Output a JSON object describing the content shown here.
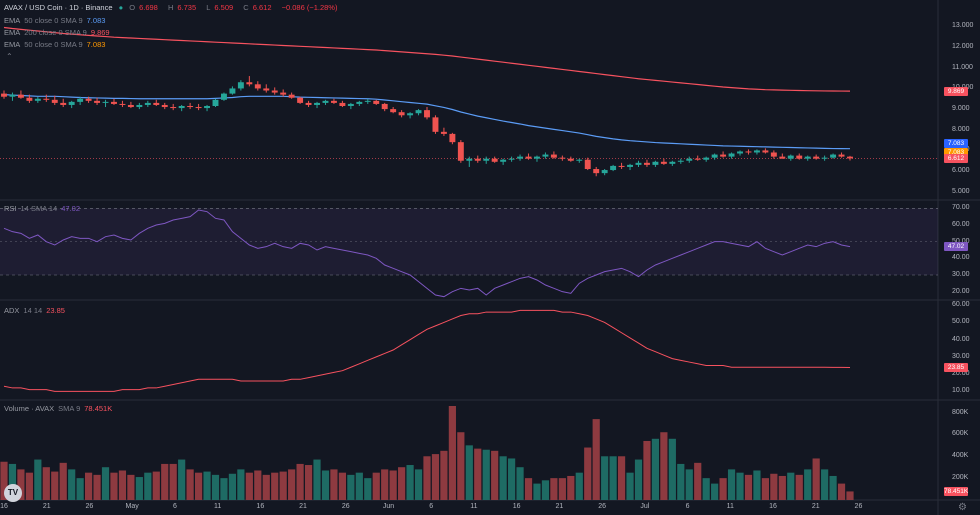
{
  "header": {
    "symbol": "AVAX / USD Coin · 1D · Binance",
    "status_dot_color": "#26a69a",
    "ohlc": [
      {
        "key": "O",
        "value": "6.698"
      },
      {
        "key": "H",
        "value": "6.735"
      },
      {
        "key": "L",
        "value": "6.509"
      },
      {
        "key": "C",
        "value": "6.612"
      }
    ],
    "change": "−0.086 (−1.28%)",
    "change_color": "#f23645"
  },
  "indicators": [
    {
      "name": "EMA",
      "params": "50 close 0 SMA 9",
      "value": "7.083",
      "color": "#5b9cf6"
    },
    {
      "name": "EMA",
      "params": "200 close 0 SMA 9",
      "value": "9.869",
      "color": "#f7525f"
    },
    {
      "name": "EMA",
      "params": "50 close 0 SMA 9",
      "value": "7.083",
      "color": "#ff9800"
    }
  ],
  "rsi": {
    "name": "RSI",
    "params": "14 SMA 14",
    "value": "47.02",
    "color": "#7e57c2"
  },
  "adx": {
    "name": "ADX",
    "params": "14 14",
    "value": "23.85",
    "color": "#f7525f"
  },
  "volume": {
    "name": "Volume · AVAX",
    "params": "SMA 9",
    "value": "78.451K",
    "color": "#f7525f"
  },
  "price_axis": [
    "13.000",
    "12.000",
    "11.000",
    "10.000",
    "9.000",
    "8.000",
    "7.000",
    "6.000",
    "5.000"
  ],
  "price_badges": [
    {
      "value": "9.869",
      "color": "#f7525f"
    },
    {
      "value": "7.083",
      "color": "#2962ff"
    },
    {
      "value": "7.083",
      "color": "#ff9800"
    },
    {
      "value": "6.612",
      "color": "#f7525f"
    }
  ],
  "rsi_axis": [
    "70.00",
    "60.00",
    "50.00",
    "40.00",
    "30.00",
    "20.00"
  ],
  "rsi_badge": {
    "value": "47.02",
    "color": "#7e57c2"
  },
  "adx_axis": [
    "60.00",
    "50.00",
    "40.00",
    "30.00",
    "20.00",
    "10.00"
  ],
  "adx_badge": {
    "value": "23.85",
    "color": "#f7525f"
  },
  "volume_axis": [
    "800K",
    "600K",
    "400K",
    "200K"
  ],
  "volume_badge": {
    "value": "78.451K",
    "color": "#f7525f"
  },
  "time_axis": [
    "16",
    "21",
    "26",
    "May",
    "6",
    "11",
    "16",
    "21",
    "26",
    "Jun",
    "6",
    "11",
    "16",
    "21",
    "26",
    "Jul",
    "6",
    "11",
    "16",
    "21",
    "26"
  ],
  "logo_text": "TV",
  "chart_data": {
    "type": "candlestick",
    "title": "AVAX / USD Coin · 1D · Binance",
    "colors": {
      "up": "#26a69a",
      "down": "#ef5350",
      "vol_up": "#1e6b64",
      "vol_down": "#8e3a40"
    },
    "price_range": [
      4.6,
      13.7
    ],
    "rsi_range": [
      15,
      75
    ],
    "adx_range": [
      5,
      63
    ],
    "volume_range": [
      0,
      860000
    ],
    "candles": [
      [
        9.75,
        9.9,
        9.5,
        9.6
      ],
      [
        9.6,
        9.8,
        9.4,
        9.7
      ],
      [
        9.7,
        9.9,
        9.5,
        9.55
      ],
      [
        9.55,
        9.7,
        9.3,
        9.4
      ],
      [
        9.4,
        9.6,
        9.3,
        9.5
      ],
      [
        9.5,
        9.7,
        9.35,
        9.45
      ],
      [
        9.45,
        9.65,
        9.2,
        9.3
      ],
      [
        9.3,
        9.5,
        9.1,
        9.2
      ],
      [
        9.2,
        9.4,
        9.05,
        9.35
      ],
      [
        9.35,
        9.6,
        9.2,
        9.5
      ],
      [
        9.5,
        9.6,
        9.3,
        9.4
      ],
      [
        9.4,
        9.55,
        9.2,
        9.3
      ],
      [
        9.3,
        9.45,
        9.1,
        9.35
      ],
      [
        9.35,
        9.5,
        9.2,
        9.25
      ],
      [
        9.25,
        9.4,
        9.1,
        9.2
      ],
      [
        9.2,
        9.35,
        9.05,
        9.1
      ],
      [
        9.1,
        9.3,
        9.0,
        9.2
      ],
      [
        9.2,
        9.4,
        9.1,
        9.3
      ],
      [
        9.3,
        9.45,
        9.15,
        9.2
      ],
      [
        9.2,
        9.3,
        9.0,
        9.1
      ],
      [
        9.1,
        9.25,
        8.95,
        9.05
      ],
      [
        9.05,
        9.2,
        8.9,
        9.15
      ],
      [
        9.15,
        9.3,
        9.0,
        9.1
      ],
      [
        9.1,
        9.25,
        8.95,
        9.05
      ],
      [
        9.05,
        9.2,
        8.9,
        9.15
      ],
      [
        9.15,
        9.5,
        9.1,
        9.45
      ],
      [
        9.45,
        9.8,
        9.4,
        9.75
      ],
      [
        9.75,
        10.1,
        9.7,
        10.0
      ],
      [
        10.0,
        10.4,
        9.9,
        10.3
      ],
      [
        10.3,
        10.6,
        10.1,
        10.2
      ],
      [
        10.2,
        10.35,
        9.9,
        10.0
      ],
      [
        10.0,
        10.2,
        9.8,
        9.9
      ],
      [
        9.9,
        10.05,
        9.7,
        9.8
      ],
      [
        9.8,
        9.95,
        9.6,
        9.7
      ],
      [
        9.7,
        9.8,
        9.5,
        9.55
      ],
      [
        9.55,
        9.6,
        9.25,
        9.3
      ],
      [
        9.3,
        9.4,
        9.1,
        9.2
      ],
      [
        9.2,
        9.35,
        9.05,
        9.3
      ],
      [
        9.3,
        9.45,
        9.2,
        9.4
      ],
      [
        9.4,
        9.5,
        9.25,
        9.3
      ],
      [
        9.3,
        9.4,
        9.1,
        9.15
      ],
      [
        9.15,
        9.3,
        9.0,
        9.25
      ],
      [
        9.25,
        9.4,
        9.15,
        9.35
      ],
      [
        9.35,
        9.5,
        9.25,
        9.4
      ],
      [
        9.4,
        9.45,
        9.2,
        9.25
      ],
      [
        9.25,
        9.3,
        8.9,
        9.0
      ],
      [
        9.0,
        9.1,
        8.8,
        8.85
      ],
      [
        8.85,
        8.95,
        8.6,
        8.7
      ],
      [
        8.7,
        8.85,
        8.55,
        8.8
      ],
      [
        8.8,
        9.0,
        8.7,
        8.95
      ],
      [
        8.95,
        9.1,
        8.5,
        8.6
      ],
      [
        8.6,
        8.7,
        7.8,
        7.9
      ],
      [
        7.9,
        8.1,
        7.7,
        7.8
      ],
      [
        7.8,
        7.85,
        7.3,
        7.4
      ],
      [
        7.4,
        7.5,
        6.4,
        6.5
      ],
      [
        6.5,
        6.7,
        6.2,
        6.6
      ],
      [
        6.6,
        6.75,
        6.4,
        6.5
      ],
      [
        6.5,
        6.7,
        6.35,
        6.6
      ],
      [
        6.6,
        6.7,
        6.4,
        6.45
      ],
      [
        6.45,
        6.6,
        6.3,
        6.55
      ],
      [
        6.55,
        6.7,
        6.45,
        6.6
      ],
      [
        6.6,
        6.8,
        6.5,
        6.7
      ],
      [
        6.7,
        6.85,
        6.55,
        6.6
      ],
      [
        6.6,
        6.75,
        6.45,
        6.7
      ],
      [
        6.7,
        6.9,
        6.6,
        6.8
      ],
      [
        6.8,
        6.95,
        6.6,
        6.65
      ],
      [
        6.65,
        6.75,
        6.5,
        6.6
      ],
      [
        6.6,
        6.7,
        6.45,
        6.5
      ],
      [
        6.5,
        6.6,
        6.4,
        6.55
      ],
      [
        6.55,
        6.65,
        6.05,
        6.1
      ],
      [
        6.1,
        6.2,
        5.75,
        5.9
      ],
      [
        5.9,
        6.1,
        5.8,
        6.05
      ],
      [
        6.05,
        6.3,
        6.0,
        6.25
      ],
      [
        6.25,
        6.4,
        6.1,
        6.2
      ],
      [
        6.2,
        6.35,
        6.05,
        6.3
      ],
      [
        6.3,
        6.5,
        6.2,
        6.4
      ],
      [
        6.4,
        6.55,
        6.2,
        6.3
      ],
      [
        6.3,
        6.5,
        6.2,
        6.45
      ],
      [
        6.45,
        6.6,
        6.3,
        6.35
      ],
      [
        6.35,
        6.5,
        6.25,
        6.45
      ],
      [
        6.45,
        6.6,
        6.35,
        6.5
      ],
      [
        6.5,
        6.7,
        6.4,
        6.6
      ],
      [
        6.6,
        6.75,
        6.5,
        6.55
      ],
      [
        6.55,
        6.7,
        6.45,
        6.65
      ],
      [
        6.65,
        6.85,
        6.55,
        6.8
      ],
      [
        6.8,
        6.95,
        6.65,
        6.7
      ],
      [
        6.7,
        6.9,
        6.6,
        6.85
      ],
      [
        6.85,
        7.0,
        6.75,
        6.95
      ],
      [
        6.95,
        7.05,
        6.8,
        6.9
      ],
      [
        6.9,
        7.05,
        6.8,
        7.0
      ],
      [
        7.0,
        7.1,
        6.85,
        6.9
      ],
      [
        6.9,
        7.0,
        6.6,
        6.7
      ],
      [
        6.7,
        6.85,
        6.6,
        6.6
      ],
      [
        6.6,
        6.8,
        6.5,
        6.75
      ],
      [
        6.75,
        6.85,
        6.55,
        6.6
      ],
      [
        6.6,
        6.75,
        6.5,
        6.7
      ],
      [
        6.7,
        6.8,
        6.55,
        6.6
      ],
      [
        6.6,
        6.75,
        6.5,
        6.65
      ],
      [
        6.65,
        6.85,
        6.6,
        6.8
      ],
      [
        6.8,
        6.9,
        6.65,
        6.7
      ],
      [
        6.698,
        6.735,
        6.509,
        6.612
      ]
    ],
    "ema50": [
      9.7,
      9.68,
      9.66,
      9.64,
      9.62,
      9.62,
      9.62,
      9.6,
      9.58,
      9.56,
      9.55,
      9.54,
      9.53,
      9.52,
      9.52,
      9.51,
      9.5,
      9.5,
      9.5,
      9.5,
      9.5,
      9.5,
      9.5,
      9.5,
      9.5,
      9.52,
      9.54,
      9.56,
      9.6,
      9.62,
      9.62,
      9.62,
      9.62,
      9.62,
      9.6,
      9.58,
      9.57,
      9.56,
      9.55,
      9.54,
      9.53,
      9.52,
      9.51,
      9.5,
      9.48,
      9.44,
      9.4,
      9.36,
      9.32,
      9.28,
      9.24,
      9.16,
      9.08,
      8.98,
      8.86,
      8.76,
      8.66,
      8.58,
      8.5,
      8.42,
      8.35,
      8.28,
      8.2,
      8.14,
      8.08,
      8.02,
      7.96,
      7.9,
      7.84,
      7.76,
      7.68,
      7.62,
      7.56,
      7.51,
      7.47,
      7.44,
      7.41,
      7.38,
      7.36,
      7.34,
      7.32,
      7.3,
      7.28,
      7.26,
      7.24,
      7.22,
      7.21,
      7.2,
      7.19,
      7.18,
      7.17,
      7.16,
      7.15,
      7.14,
      7.13,
      7.12,
      7.11,
      7.1,
      7.09,
      7.085,
      7.083
    ],
    "ema200": [
      12.95,
      12.9,
      12.86,
      12.82,
      12.78,
      12.74,
      12.7,
      12.66,
      12.63,
      12.6,
      12.57,
      12.54,
      12.51,
      12.48,
      12.46,
      12.44,
      12.42,
      12.4,
      12.38,
      12.36,
      12.34,
      12.32,
      12.3,
      12.28,
      12.26,
      12.24,
      12.22,
      12.2,
      12.18,
      12.16,
      12.14,
      12.12,
      12.1,
      12.08,
      12.06,
      12.04,
      12.02,
      12.0,
      11.98,
      11.96,
      11.94,
      11.92,
      11.9,
      11.88,
      11.86,
      11.83,
      11.8,
      11.77,
      11.74,
      11.71,
      11.68,
      11.65,
      11.61,
      11.57,
      11.52,
      11.47,
      11.42,
      11.37,
      11.32,
      11.27,
      11.22,
      11.17,
      11.12,
      11.07,
      11.02,
      10.97,
      10.92,
      10.87,
      10.82,
      10.77,
      10.72,
      10.67,
      10.62,
      10.57,
      10.52,
      10.47,
      10.43,
      10.39,
      10.35,
      10.31,
      10.27,
      10.23,
      10.19,
      10.15,
      10.11,
      10.07,
      10.04,
      10.01,
      9.98,
      9.96,
      9.94,
      9.93,
      9.92,
      9.91,
      9.9,
      9.89,
      9.885,
      9.88,
      9.875,
      9.872,
      9.869
    ],
    "rsi": [
      58,
      56,
      55,
      52,
      54,
      50,
      48,
      51,
      53,
      52,
      52,
      50,
      53,
      54,
      52,
      51,
      55,
      58,
      60,
      61,
      63,
      64,
      65,
      69,
      68,
      64,
      63,
      56,
      52,
      48,
      46,
      47,
      49,
      47,
      46,
      49,
      48,
      45,
      47,
      46,
      45,
      44,
      43,
      42,
      40,
      36,
      34,
      32,
      30,
      26,
      22,
      18,
      17,
      20,
      22,
      21,
      22,
      18,
      22,
      24,
      26,
      28,
      29,
      27,
      24,
      22,
      20,
      19,
      25,
      28,
      30,
      32,
      33,
      34,
      32,
      29,
      33,
      36,
      38,
      40,
      42,
      44,
      46,
      48,
      50,
      50,
      49,
      48,
      47,
      50,
      46,
      44,
      42,
      44,
      46,
      48,
      47,
      49,
      50,
      48,
      47.02
    ],
    "adx": [
      13,
      12,
      12,
      11,
      11,
      11,
      10,
      10,
      10,
      10,
      10,
      10,
      10,
      10,
      11,
      11,
      11,
      12,
      12,
      13,
      14,
      15,
      16,
      17,
      17,
      17,
      17,
      17,
      16,
      16,
      16,
      16,
      16,
      16,
      17,
      17,
      18,
      19,
      20,
      21,
      22,
      24,
      26,
      28,
      30,
      32,
      34,
      37,
      40,
      43,
      46,
      48,
      50,
      52,
      54,
      55,
      55,
      56,
      56,
      56,
      56,
      57,
      57,
      57,
      57,
      57,
      56,
      56,
      55,
      54,
      52,
      50,
      47,
      44,
      41,
      38,
      35,
      33,
      31,
      29,
      28,
      27,
      26,
      25,
      25,
      25,
      24,
      24,
      24,
      24,
      24,
      24,
      24,
      24,
      24,
      24,
      24,
      24,
      23.9,
      23.9,
      23.85
    ],
    "volume": [
      350000,
      330000,
      280000,
      250000,
      370000,
      300000,
      260000,
      340000,
      280000,
      200000,
      250000,
      230000,
      300000,
      250000,
      270000,
      230000,
      210000,
      250000,
      260000,
      330000,
      330000,
      370000,
      280000,
      250000,
      260000,
      230000,
      200000,
      240000,
      280000,
      250000,
      270000,
      230000,
      250000,
      260000,
      280000,
      330000,
      320000,
      370000,
      270000,
      280000,
      250000,
      230000,
      250000,
      200000,
      250000,
      280000,
      270000,
      300000,
      320000,
      280000,
      400000,
      420000,
      450000,
      860000,
      620000,
      500000,
      470000,
      460000,
      450000,
      400000,
      380000,
      300000,
      200000,
      150000,
      180000,
      200000,
      200000,
      220000,
      250000,
      480000,
      740000,
      400000,
      400000,
      400000,
      250000,
      370000,
      540000,
      560000,
      620000,
      560000,
      330000,
      280000,
      340000,
      200000,
      150000,
      200000,
      280000,
      250000,
      230000,
      270000,
      200000,
      240000,
      220000,
      250000,
      230000,
      280000,
      380000,
      280000,
      220000,
      150000,
      78451
    ]
  }
}
